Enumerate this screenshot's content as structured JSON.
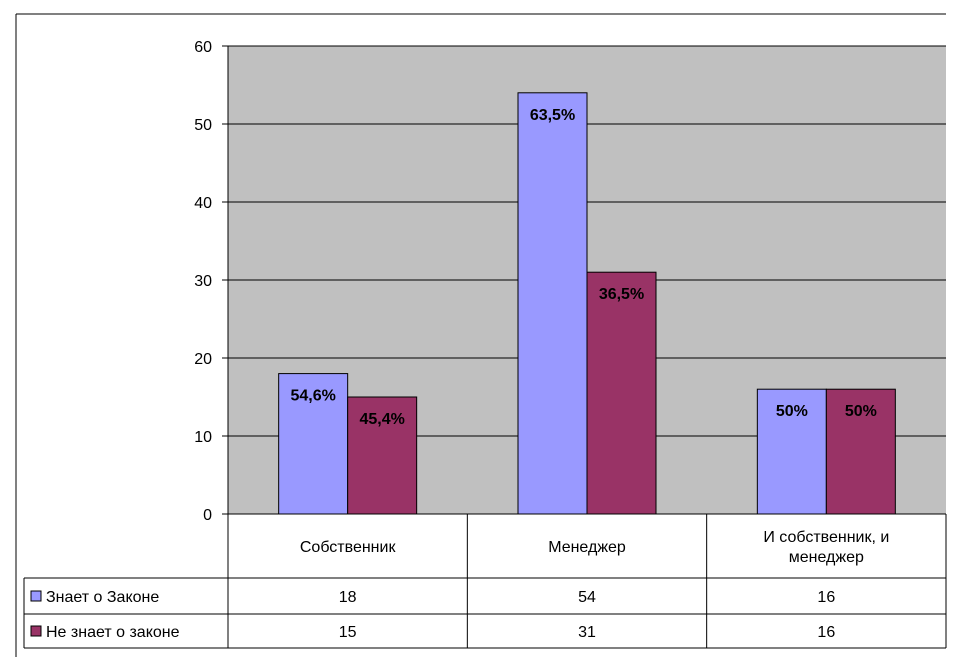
{
  "chart_data": {
    "type": "bar",
    "categories": [
      "Собственник",
      "Менеджер",
      "И собственник, и менеджер"
    ],
    "category_lines": [
      [
        "Собственник"
      ],
      [
        "Менеджер"
      ],
      [
        "И собственник, и",
        "менеджер"
      ]
    ],
    "series": [
      {
        "name": "Знает о Законе",
        "values": [
          18,
          54,
          16
        ],
        "data_labels": [
          "54,6%",
          "63,5%",
          "50%"
        ],
        "color": "#9999ff"
      },
      {
        "name": "Не знает о законе",
        "values": [
          15,
          31,
          16
        ],
        "data_labels": [
          "45,4%",
          "36,5%",
          "50%"
        ],
        "color": "#993366"
      }
    ],
    "ylim": [
      0,
      60
    ],
    "yticks": [
      0,
      10,
      20,
      30,
      40,
      50,
      60
    ],
    "grid": true,
    "plot_background": "#c0c0c0",
    "legend": "data-table-left",
    "title": "",
    "xlabel": "",
    "ylabel": ""
  }
}
